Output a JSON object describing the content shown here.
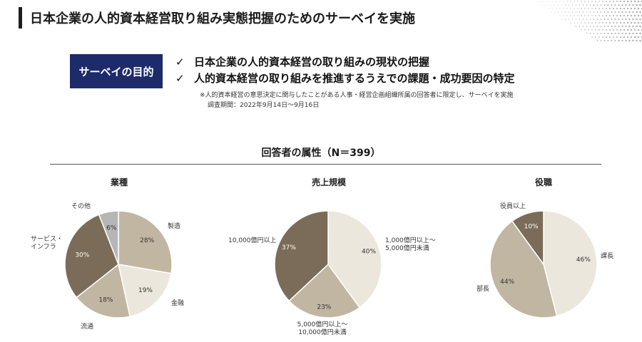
{
  "page": {
    "title": "日本企業の人的資本経営取り組み実態把握のためのサーベイを実施"
  },
  "purpose": {
    "label": "サーベイの目的",
    "items": [
      "日本企業の人的資本経営の取り組みの現状の把握",
      "人的資本経営の取り組みを推進するうえでの課題・成功要因の特定"
    ],
    "check_mark": "✓",
    "note_line1": "※人的資本経営の意思決定に関与したことがある人事・経営企画組織所属の回答者に限定し、サーベイを実施",
    "note_line2": "調査期間：2022年9月14日～9月16日"
  },
  "attributes": {
    "title": "回答者の属性（N＝399）"
  },
  "colors": {
    "dark": "#7a6c58",
    "medium": "#c1b6a2",
    "light": "#ece7dc",
    "gray": "#b6b6b6",
    "navy": "#1d2b6b"
  },
  "chart_data": [
    {
      "type": "pie",
      "title": "業種",
      "slices": [
        {
          "label": "製造",
          "value": 28,
          "color": "#c1b6a2",
          "pct_text": "28%"
        },
        {
          "label": "金融",
          "value": 19,
          "color": "#ece7dc",
          "pct_text": "19%"
        },
        {
          "label": "流通",
          "value": 18,
          "color": "#c1b6a2",
          "pct_text": "18%"
        },
        {
          "label": "サービス・\nインフラ",
          "value": 30,
          "color": "#7a6c58",
          "pct_text": "30%"
        },
        {
          "label": "その他",
          "value": 6,
          "color": "#b6b6b6",
          "pct_text": "6%"
        }
      ]
    },
    {
      "type": "pie",
      "title": "売上規模",
      "slices": [
        {
          "label": "1,000億円以上～\n5,000億円未満",
          "value": 40,
          "color": "#ece7dc",
          "pct_text": "40%"
        },
        {
          "label": "5,000億円以上～\n10,000億円未満",
          "value": 23,
          "color": "#c1b6a2",
          "pct_text": "23%"
        },
        {
          "label": "10,000億円以上",
          "value": 37,
          "color": "#7a6c58",
          "pct_text": "37%"
        }
      ]
    },
    {
      "type": "pie",
      "title": "役職",
      "slices": [
        {
          "label": "課長",
          "value": 46,
          "color": "#ece7dc",
          "pct_text": "46%"
        },
        {
          "label": "部長",
          "value": 44,
          "color": "#c1b6a2",
          "pct_text": "44%"
        },
        {
          "label": "役員以上",
          "value": 10,
          "color": "#7a6c58",
          "pct_text": "10%"
        }
      ]
    }
  ]
}
